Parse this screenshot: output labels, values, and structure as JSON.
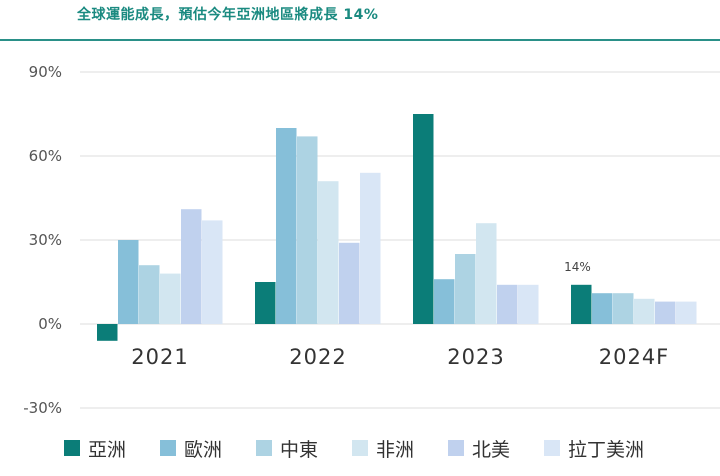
{
  "chart_data": {
    "type": "bar",
    "title": "全球運能成長，預估今年亞洲地區將成長 14%",
    "xlabel": "",
    "ylabel": "",
    "ylim": [
      -30,
      90
    ],
    "yticks": [
      -30,
      0,
      30,
      60,
      90
    ],
    "ytick_labels": [
      "-30%",
      "0%",
      "30%",
      "60%",
      "90%"
    ],
    "grid": "horizontal",
    "legend_position": "bottom",
    "categories": [
      "2021",
      "2022",
      "2023",
      "2024F"
    ],
    "series": [
      {
        "name": "亞洲",
        "color": "#0b7d78",
        "values": [
          -6,
          15,
          75,
          14
        ]
      },
      {
        "name": "歐洲",
        "color": "#86bfd9",
        "values": [
          30,
          70,
          16,
          11
        ]
      },
      {
        "name": "中東",
        "color": "#add3e3",
        "values": [
          21,
          67,
          25,
          11
        ]
      },
      {
        "name": "非洲",
        "color": "#d2e6f0",
        "values": [
          18,
          51,
          36,
          9
        ]
      },
      {
        "name": "北美",
        "color": "#c0d1ee",
        "values": [
          41,
          29,
          14,
          8
        ]
      },
      {
        "name": "拉丁美洲",
        "color": "#d9e6f6",
        "values": [
          37,
          54,
          14,
          8
        ]
      }
    ],
    "annotations": [
      {
        "text": "14%",
        "category": "2024F",
        "series": "亞洲"
      }
    ]
  }
}
